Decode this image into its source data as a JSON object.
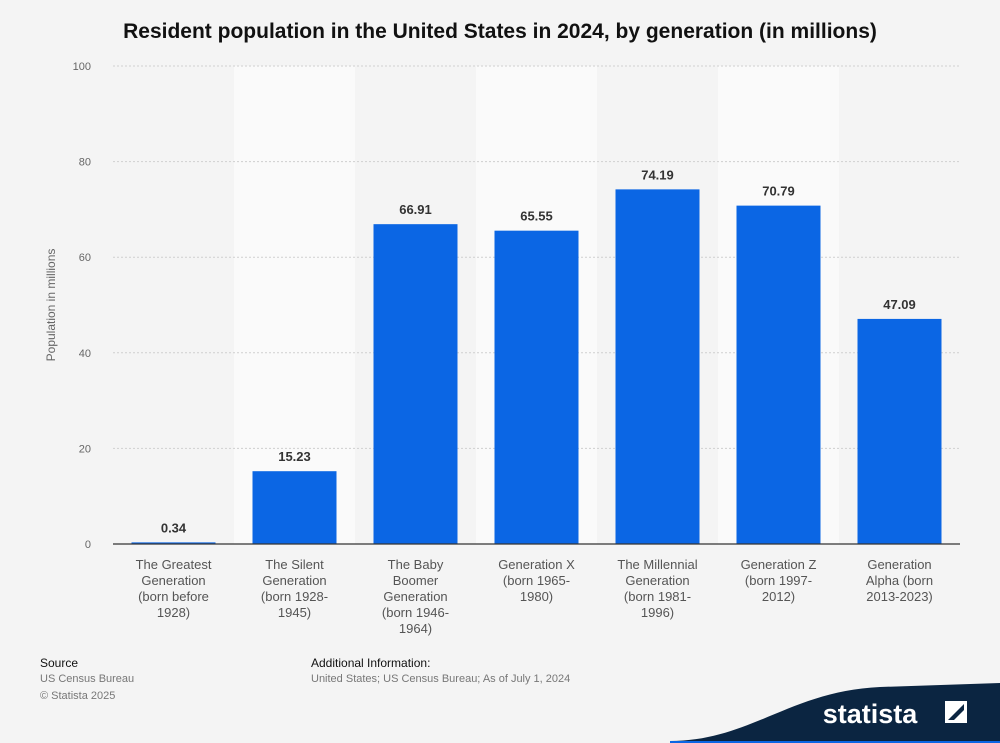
{
  "title": "Resident population in the United States in 2024, by generation (in millions)",
  "colors": {
    "bar": "#0b66e4",
    "band": "#fafafa",
    "grid": "#cfcfcf",
    "brand_dark": "#0b2541",
    "brand_accent": "#0b66e4"
  },
  "chart_data": {
    "type": "bar",
    "title": "Resident population in the United States in 2024, by generation (in millions)",
    "xlabel": "",
    "ylabel": "Population in millions",
    "ylim": [
      0,
      100
    ],
    "yticks": [
      0,
      20,
      40,
      60,
      80,
      100
    ],
    "grid": true,
    "categories": [
      [
        "The Greatest",
        "Generation",
        "(born before",
        "1928)"
      ],
      [
        "The Silent",
        "Generation",
        "(born 1928-",
        "1945)"
      ],
      [
        "The Baby",
        "Boomer",
        "Generation",
        "(born 1946-",
        "1964)"
      ],
      [
        "Generation X",
        "(born 1965-",
        "1980)"
      ],
      [
        "The Millennial",
        "Generation",
        "(born 1981-",
        "1996)"
      ],
      [
        "Generation Z",
        "(born 1997-",
        "2012)"
      ],
      [
        "Generation",
        "Alpha (born",
        "2013-2023)"
      ]
    ],
    "values": [
      0.34,
      15.23,
      66.91,
      65.55,
      74.19,
      70.79,
      47.09
    ],
    "value_labels": [
      "0.34",
      "15.23",
      "66.91",
      "65.55",
      "74.19",
      "70.79",
      "47.09"
    ]
  },
  "footer": {
    "source_heading": "Source",
    "source": "US Census Bureau",
    "copyright": "© Statista 2025",
    "additional_heading": "Additional Information:",
    "additional": "United States; US Census Bureau; As of July 1, 2024"
  },
  "brand": {
    "name": "statista",
    "icon": "statista-logo-icon"
  }
}
